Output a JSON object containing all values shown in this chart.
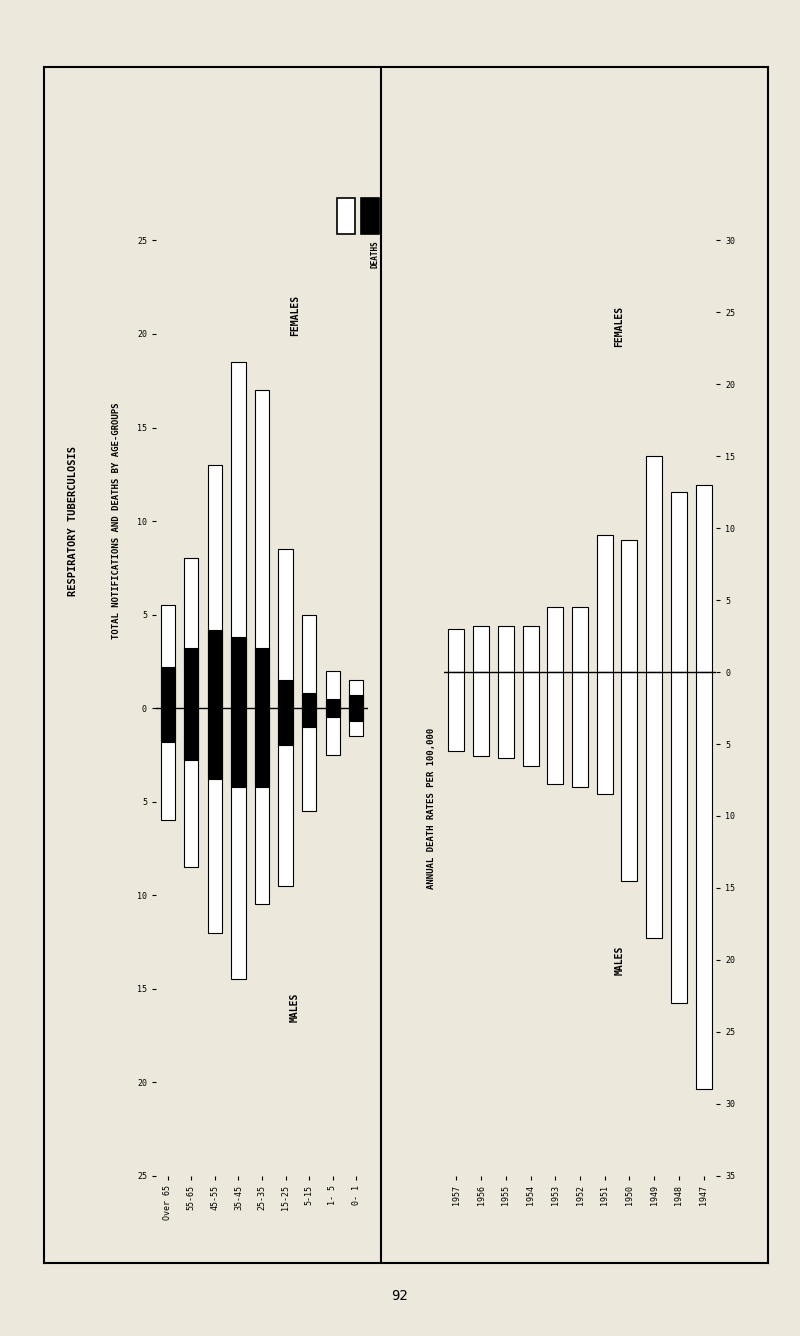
{
  "background_color": "#ede8dc",
  "title1": "RESPIRATORY TUBERCULOSIS",
  "title2": "TOTAL NOTIFICATIONS AND DEATHS BY AGE-GROUPS",
  "age_groups": [
    "Over 65",
    "55-65",
    "45-55",
    "35-45",
    "25-35",
    "15-25",
    "5-15",
    "1- 5",
    "0- 1"
  ],
  "years": [
    "1957",
    "1956",
    "1955",
    "1954",
    "1953",
    "1952",
    "1951",
    "1950",
    "1949",
    "1948",
    "1947"
  ],
  "left_notif_female": [
    5.5,
    8.0,
    13.0,
    18.5,
    17.0,
    8.5,
    5.0,
    2.0,
    1.5
  ],
  "left_notif_male": [
    6.0,
    8.5,
    12.0,
    14.5,
    10.5,
    9.5,
    5.5,
    2.5,
    1.5
  ],
  "left_death_female": [
    2.2,
    3.2,
    4.2,
    3.8,
    3.2,
    1.5,
    0.8,
    0.5,
    0.7
  ],
  "left_death_male": [
    1.8,
    2.8,
    3.8,
    4.2,
    4.2,
    2.0,
    1.0,
    0.5,
    0.7
  ],
  "right_death_female": [
    3.0,
    3.2,
    3.2,
    3.2,
    4.5,
    4.5,
    9.5,
    9.2,
    15.0,
    12.5,
    13.0
  ],
  "right_death_male": [
    5.5,
    5.8,
    6.0,
    6.5,
    7.8,
    8.0,
    8.5,
    14.5,
    18.5,
    23.0,
    29.0
  ]
}
